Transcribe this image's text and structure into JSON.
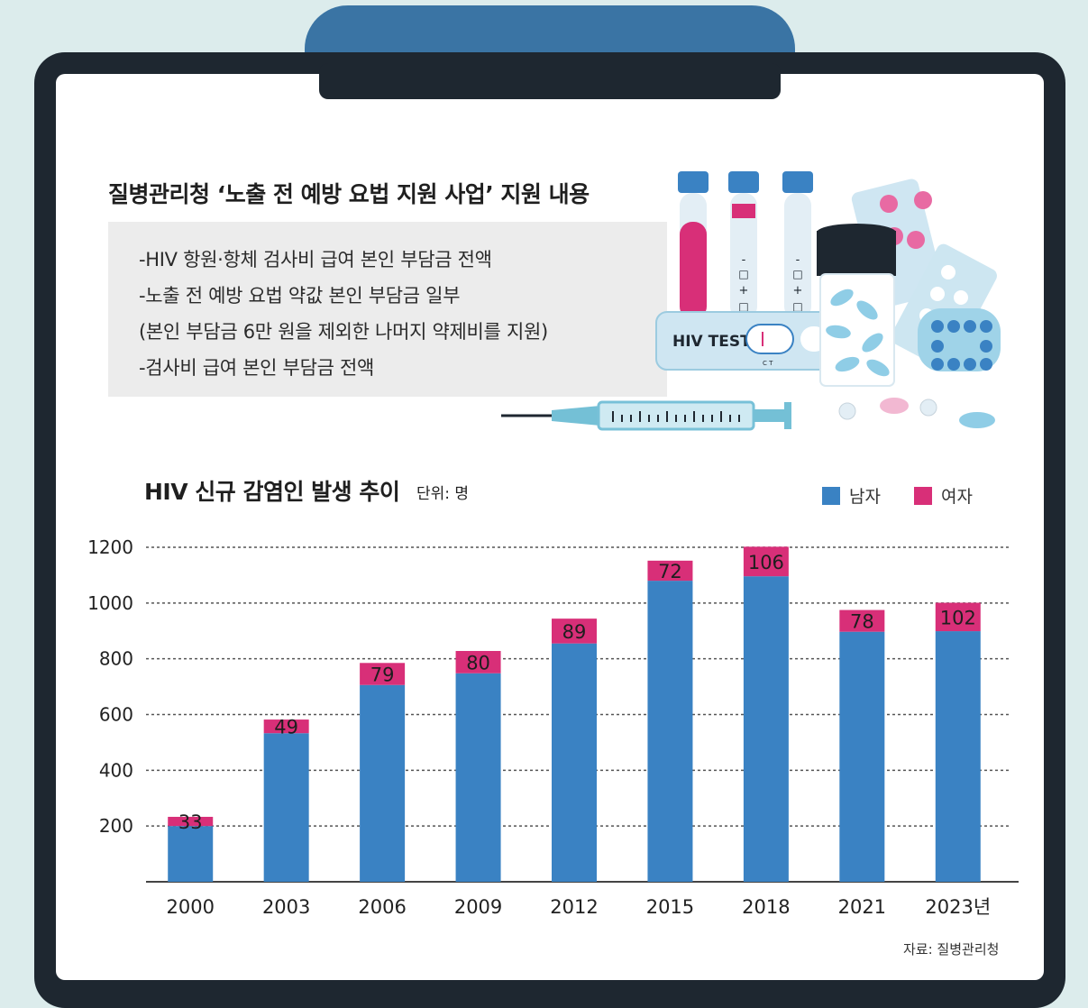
{
  "header": {
    "title": "질병관리청 ‘노출 전 예방 요법 지원 사업’ 지원 내용",
    "items": [
      "-HIV 항원·항체 검사비 급여 본인 부담금 전액",
      "-노출 전 예방 요법 약값 본인 부담금 일부",
      " (본인 부담금 6만 원을 제외한 나머지 약제비를 지원)",
      "-검사비 급여 본인 부담금 전액"
    ]
  },
  "illustration": {
    "kit_label": "HIV TEST",
    "kit_marks": "C T",
    "tube_marks": [
      "-",
      "□",
      "+",
      "□"
    ]
  },
  "chart": {
    "title": "HIV 신규 감염인 발생 추이",
    "unit": "단위: 명",
    "source": "자료: 질병관리청"
  },
  "colors": {
    "male": "#3a82c3",
    "female": "#d82f78",
    "clipboard": "#1e2730",
    "clip": "#3a74a4"
  },
  "chart_data": {
    "type": "bar",
    "stacked": true,
    "categories": [
      "2000",
      "2003",
      "2006",
      "2009",
      "2012",
      "2015",
      "2018",
      "2021",
      "2023년"
    ],
    "series": [
      {
        "name": "남자",
        "values": [
          200,
          533,
          706,
          748,
          855,
          1080,
          1096,
          897,
          899
        ]
      },
      {
        "name": "여자",
        "values": [
          33,
          49,
          79,
          80,
          89,
          72,
          106,
          78,
          102
        ]
      }
    ],
    "data_labels": [
      "33",
      "49",
      "79",
      "80",
      "89",
      "72",
      "106",
      "78",
      "102"
    ],
    "ylim": [
      0,
      1200
    ],
    "yticks": [
      200,
      400,
      600,
      800,
      1000,
      1200
    ],
    "grid": true,
    "legend": "top-right"
  }
}
